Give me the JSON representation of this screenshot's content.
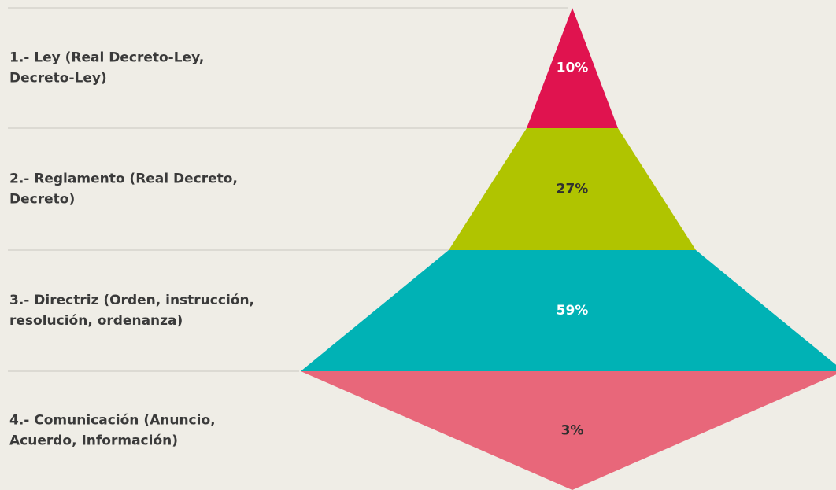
{
  "chart_data": {
    "type": "pyramid",
    "categories": [
      [
        "1.- Ley (Real Decreto-Ley,",
        "Decreto-Ley)"
      ],
      [
        "2.- Reglamento (Real Decreto,",
        "Decreto)"
      ],
      [
        "3.- Directriz (Orden, instrucción,",
        "resolución, ordenanza)"
      ],
      [
        "4.- Comunicación (Anuncio,",
        "Acuerdo, Información)"
      ]
    ],
    "values": [
      10,
      27,
      59,
      3
    ],
    "value_labels": [
      "10%",
      "27%",
      "59%",
      "3%"
    ],
    "colors": [
      "#e0134f",
      "#b0c400",
      "#00b2b5",
      "#e8677a"
    ]
  }
}
